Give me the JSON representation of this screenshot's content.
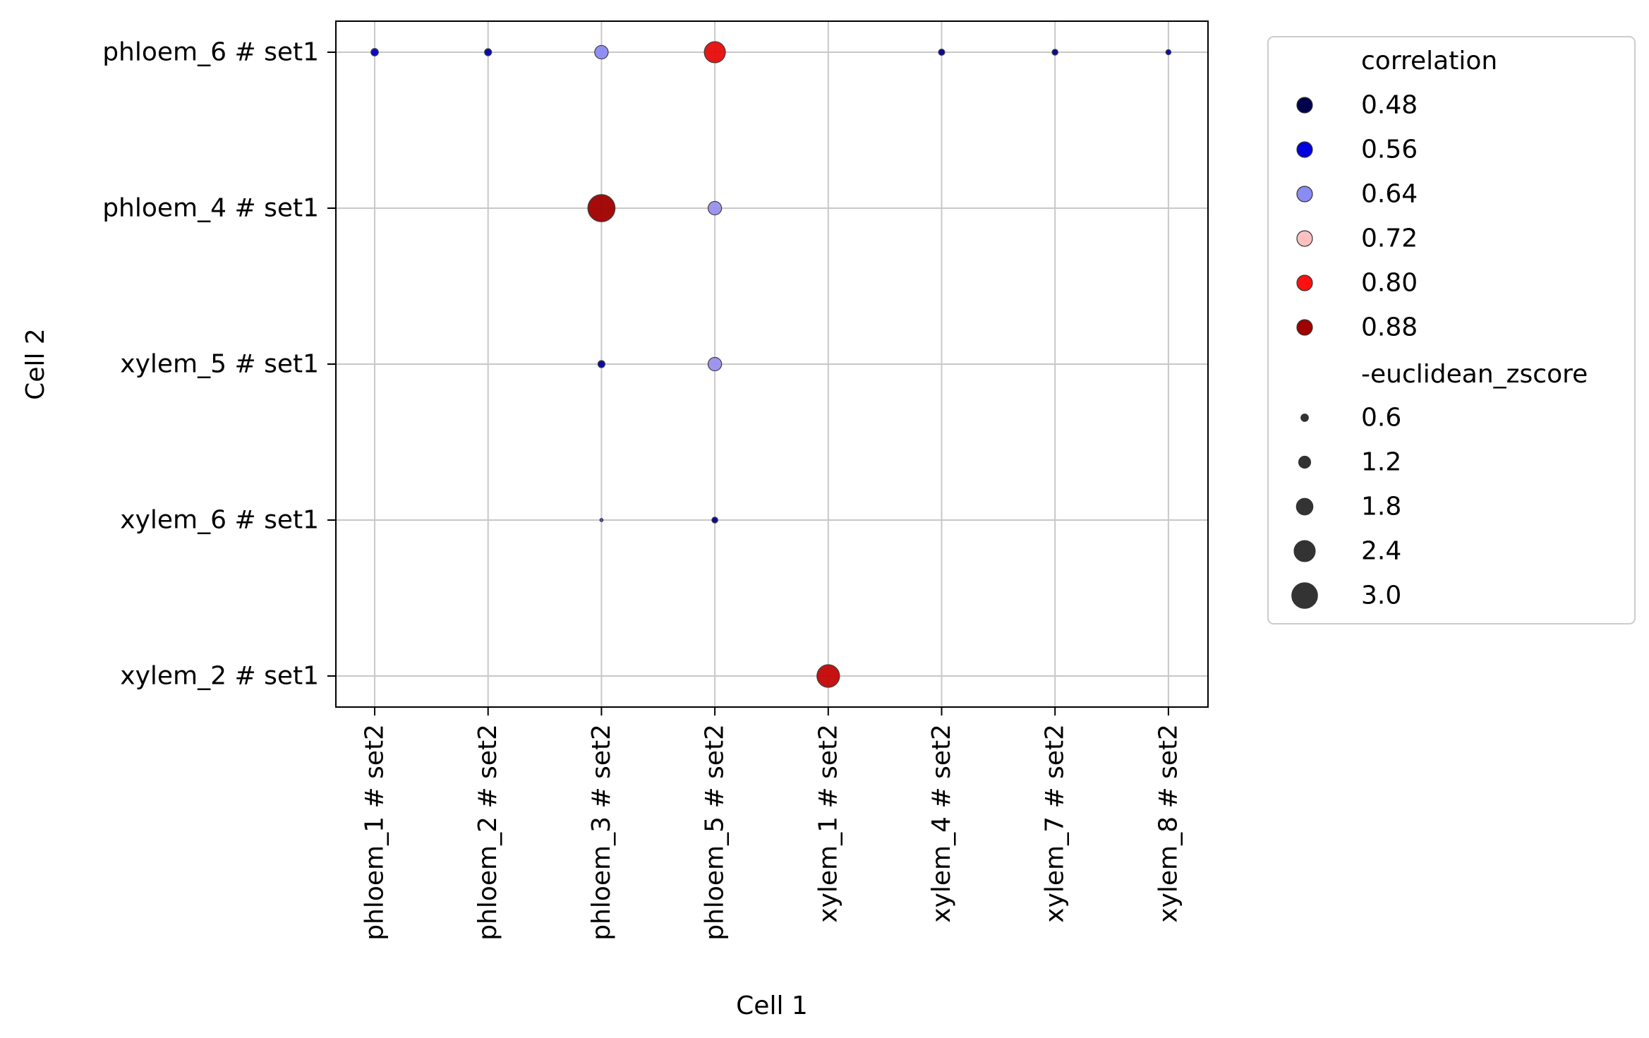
{
  "chart_data": {
    "type": "scatter",
    "xlabel": "Cell 1",
    "ylabel": "Cell 2",
    "x_categories": [
      "phloem_1 # set2",
      "phloem_2 # set2",
      "phloem_3 # set2",
      "phloem_5 # set2",
      "xylem_1 # set2",
      "xylem_4 # set2",
      "xylem_7 # set2",
      "xylem_8 # set2"
    ],
    "y_categories": [
      "phloem_6 # set1",
      "phloem_4 # set1",
      "xylem_5 # set1",
      "xylem_6 # set1",
      "xylem_2 # set1"
    ],
    "grid": true,
    "legend_placement": "outside-right",
    "hue_title": "correlation",
    "size_title": "-euclidean_zscore",
    "hue_legend": [
      {
        "label": "0.48",
        "value": 0.48,
        "color": "#00004c"
      },
      {
        "label": "0.56",
        "value": 0.56,
        "color": "#0000dd"
      },
      {
        "label": "0.64",
        "value": 0.64,
        "color": "#8b8bf4"
      },
      {
        "label": "0.72",
        "value": 0.72,
        "color": "#ffc0c0"
      },
      {
        "label": "0.80",
        "value": 0.8,
        "color": "#ff1010"
      },
      {
        "label": "0.88",
        "value": 0.88,
        "color": "#a00000"
      }
    ],
    "size_legend": [
      {
        "label": "0.6",
        "value": 0.6
      },
      {
        "label": "1.2",
        "value": 1.2
      },
      {
        "label": "1.8",
        "value": 1.8
      },
      {
        "label": "2.4",
        "value": 2.4
      },
      {
        "label": "3.0",
        "value": 3.0
      }
    ],
    "points": [
      {
        "x": "phloem_1 # set2",
        "y": "phloem_6 # set1",
        "correlation": 0.55,
        "euclidean_zscore": 0.6
      },
      {
        "x": "phloem_2 # set2",
        "y": "phloem_6 # set1",
        "correlation": 0.53,
        "euclidean_zscore": 0.55
      },
      {
        "x": "phloem_3 # set2",
        "y": "phloem_6 # set1",
        "correlation": 0.64,
        "euclidean_zscore": 1.4
      },
      {
        "x": "phloem_5 # set2",
        "y": "phloem_6 # set1",
        "correlation": 0.82,
        "euclidean_zscore": 2.4
      },
      {
        "x": "xylem_4 # set2",
        "y": "phloem_6 # set1",
        "correlation": 0.52,
        "euclidean_zscore": 0.45
      },
      {
        "x": "xylem_7 # set2",
        "y": "phloem_6 # set1",
        "correlation": 0.52,
        "euclidean_zscore": 0.4
      },
      {
        "x": "xylem_8 # set2",
        "y": "phloem_6 # set1",
        "correlation": 0.54,
        "euclidean_zscore": 0.3
      },
      {
        "x": "phloem_3 # set2",
        "y": "phloem_4 # set1",
        "correlation": 0.9,
        "euclidean_zscore": 3.2
      },
      {
        "x": "phloem_5 # set2",
        "y": "phloem_4 # set1",
        "correlation": 0.65,
        "euclidean_zscore": 1.4
      },
      {
        "x": "phloem_3 # set2",
        "y": "xylem_5 # set1",
        "correlation": 0.53,
        "euclidean_zscore": 0.55
      },
      {
        "x": "phloem_5 # set2",
        "y": "xylem_5 # set1",
        "correlation": 0.65,
        "euclidean_zscore": 1.4
      },
      {
        "x": "phloem_3 # set2",
        "y": "xylem_6 # set1",
        "correlation": 0.6,
        "euclidean_zscore": 0.05
      },
      {
        "x": "phloem_5 # set2",
        "y": "xylem_6 # set1",
        "correlation": 0.52,
        "euclidean_zscore": 0.4
      },
      {
        "x": "xylem_1 # set2",
        "y": "xylem_2 # set1",
        "correlation": 0.85,
        "euclidean_zscore": 2.6
      }
    ]
  }
}
